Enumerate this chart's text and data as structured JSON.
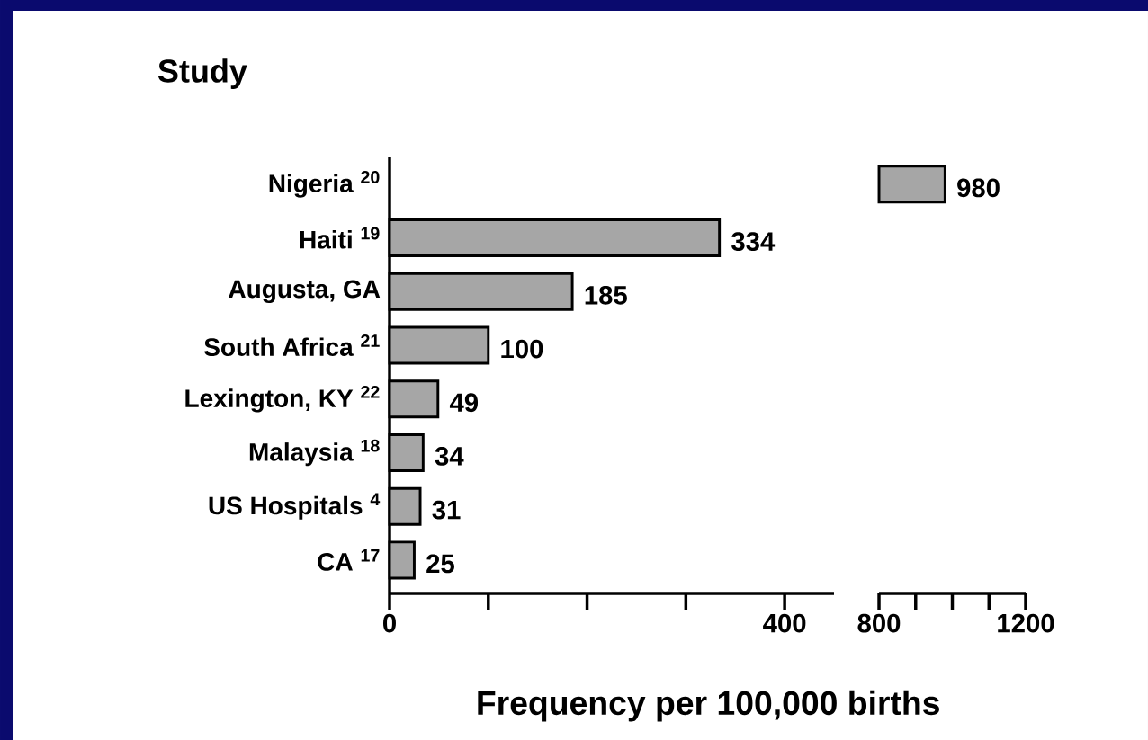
{
  "chart_data": [
    {
      "type": "bar",
      "orientation": "horizontal",
      "title": "Study",
      "xlabel": "Frequency per 100,000 births",
      "categories": [
        "Nigeria $^{20}$",
        "Haiti $^{19}$",
        "Augusta, GA",
        "South Africa $^{21}$",
        "Lexington, KY $^{22}$",
        "Malaysia $^{18}$",
        "US Hospitals $^{4}$",
        "CA $^{17}$"
      ],
      "values": [
        null,
        334,
        185,
        100,
        49,
        34,
        31,
        25
      ],
      "color": "#a6a6a6",
      "data_labels": true,
      "xlim": [
        0,
        450
      ],
      "xticks": [
        0,
        400
      ]
    },
    {
      "type": "bar",
      "orientation": "horizontal",
      "categories": [
        null,
        null,
        null,
        null,
        null,
        null,
        null,
        null
      ],
      "values": [
        980,
        null,
        null,
        null,
        null,
        null,
        null,
        null
      ],
      "color": "#a6a6a6",
      "data_labels": true,
      "tick_labels": "x",
      "xlim": [
        800,
        1200
      ],
      "xticks": [
        800,
        1200
      ]
    }
  ]
}
